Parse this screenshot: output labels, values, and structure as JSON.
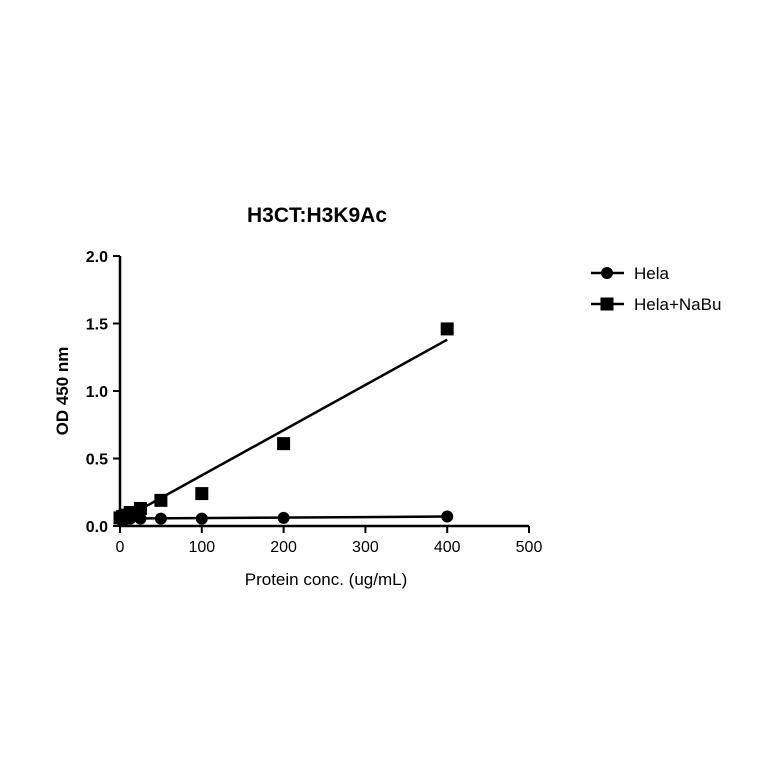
{
  "chart_data": {
    "type": "scatter",
    "title": "H3CT:H3K9Ac",
    "xlabel": "Protein conc. (ug/mL)",
    "ylabel": "OD 450 nm",
    "xlim": [
      0,
      500
    ],
    "ylim": [
      0,
      2.0
    ],
    "xticks": [
      "0",
      "100",
      "200",
      "300",
      "400",
      "500"
    ],
    "yticks": [
      "0.0",
      "0.5",
      "1.0",
      "1.5",
      "2.0"
    ],
    "grid": false,
    "legend_placement": "top-right",
    "x": [
      0,
      3.125,
      6.25,
      12.5,
      25,
      50,
      100,
      200,
      400
    ],
    "series": [
      {
        "name": "Hela",
        "marker": "circle",
        "values": [
          0.05,
          0.05,
          0.05,
          0.055,
          0.055,
          0.055,
          0.055,
          0.06,
          0.07
        ],
        "fit": [
          0.055,
          0.07
        ]
      },
      {
        "name": "Hela+NaBu",
        "marker": "square",
        "values": [
          0.06,
          0.07,
          0.08,
          0.1,
          0.13,
          0.19,
          0.24,
          0.61,
          1.46
        ],
        "fit": [
          0.04,
          1.38
        ]
      }
    ]
  }
}
